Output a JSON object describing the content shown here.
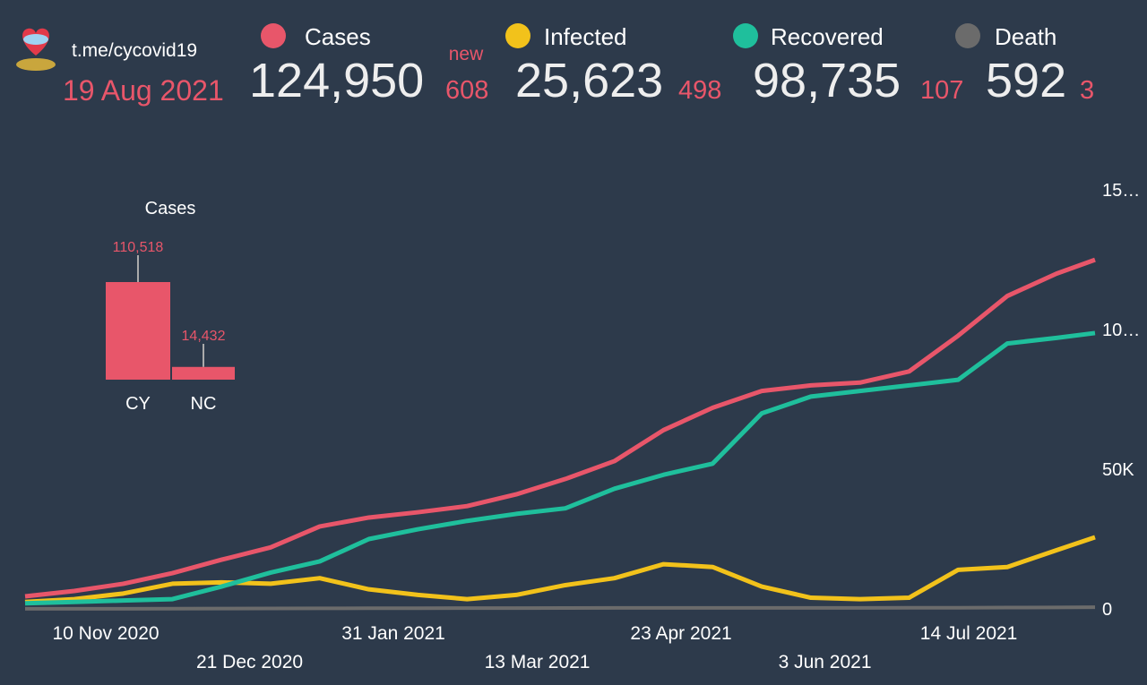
{
  "header": {
    "source": "t.me/cycovid19",
    "date": "19 Aug 2021",
    "new_label": "new",
    "stats": [
      {
        "name": "Cases",
        "color": "#e8566a",
        "value": "124,950",
        "new": "608"
      },
      {
        "name": "Infected",
        "color": "#f2c21b",
        "value": "25,623",
        "new": "498"
      },
      {
        "name": "Recovered",
        "color": "#1fbf9c",
        "value": "98,735",
        "new": "107"
      },
      {
        "name": "Death",
        "color": "#6b6b6b",
        "value": "592",
        "new": "3"
      }
    ]
  },
  "chart_data": [
    {
      "type": "bar",
      "title": "Cases",
      "categories": [
        "CY",
        "NC"
      ],
      "values": [
        110518,
        14432
      ],
      "value_labels": [
        "110,518",
        "14,432"
      ],
      "color": "#e8566a"
    },
    {
      "type": "line",
      "x": [
        "2020-10-18",
        "2020-11-01",
        "2020-11-15",
        "2020-11-29",
        "2020-12-13",
        "2020-12-27",
        "2021-01-10",
        "2021-01-24",
        "2021-02-07",
        "2021-02-21",
        "2021-03-07",
        "2021-03-21",
        "2021-04-04",
        "2021-04-18",
        "2021-05-02",
        "2021-05-16",
        "2021-05-30",
        "2021-06-13",
        "2021-06-27",
        "2021-07-11",
        "2021-07-25",
        "2021-08-08",
        "2021-08-19"
      ],
      "series": [
        {
          "name": "Cases",
          "color": "#e8566a",
          "values": [
            4500,
            6400,
            9000,
            12800,
            17600,
            22000,
            29500,
            32700,
            34600,
            36800,
            41000,
            46500,
            52900,
            64000,
            72000,
            78000,
            80000,
            81000,
            85000,
            97800,
            112000,
            120000,
            124950
          ]
        },
        {
          "name": "Recovered",
          "color": "#1fbf9c",
          "values": [
            2000,
            2500,
            3000,
            3500,
            8000,
            13000,
            17000,
            25000,
            28500,
            31500,
            34000,
            36000,
            43000,
            48000,
            52000,
            70000,
            76000,
            78000,
            80000,
            82000,
            95000,
            97000,
            98735
          ]
        },
        {
          "name": "Infected",
          "color": "#f2c21b",
          "values": [
            2500,
            3500,
            5500,
            9000,
            9500,
            9000,
            11000,
            7000,
            5000,
            3500,
            5000,
            8500,
            11000,
            16000,
            15000,
            8000,
            4000,
            3500,
            4000,
            14000,
            15000,
            21000,
            25623
          ]
        },
        {
          "name": "Death",
          "color": "#6b6b6b",
          "values": [
            30,
            40,
            50,
            70,
            110,
            150,
            200,
            230,
            250,
            270,
            290,
            320,
            360,
            380,
            370,
            380,
            380,
            380,
            390,
            420,
            470,
            540,
            592
          ]
        }
      ],
      "xlim": [
        "2020-10-18",
        "2021-08-19"
      ],
      "xticks": [
        {
          "value": "2020-11-10",
          "label": "10 Nov 2020"
        },
        {
          "value": "2020-12-21",
          "label": "21 Dec 2020"
        },
        {
          "value": "2021-01-31",
          "label": "31 Jan 2021"
        },
        {
          "value": "2021-03-13",
          "label": "13 Mar 2021"
        },
        {
          "value": "2021-04-23",
          "label": "23 Apr 2021"
        },
        {
          "value": "2021-06-03",
          "label": "3 Jun 2021"
        },
        {
          "value": "2021-07-14",
          "label": "14 Jul 2021"
        }
      ],
      "ylim": [
        0,
        150000
      ],
      "yticks": [
        0,
        {
          "value": 50000,
          "label": "50K"
        },
        {
          "value": 100000,
          "label": "10…"
        },
        {
          "value": 150000,
          "label": "15…"
        }
      ]
    }
  ]
}
